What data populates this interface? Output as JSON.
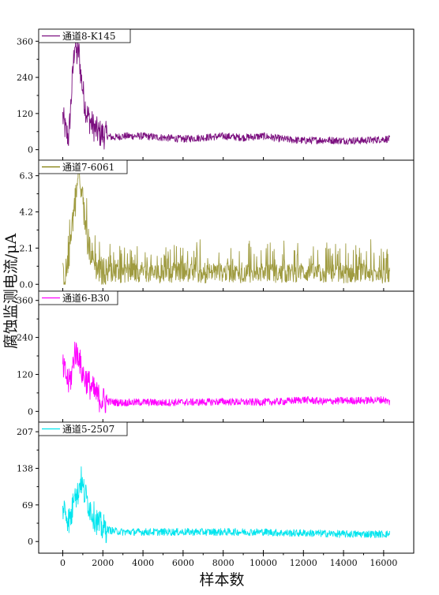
{
  "chart_data": {
    "type": "line",
    "ylabel": "腐蚀监测电流/μA",
    "xlabel": "样本数",
    "xlim": [
      -1200,
      17500
    ],
    "xticks": [
      0,
      2000,
      4000,
      6000,
      8000,
      10000,
      12000,
      14000,
      16000
    ],
    "grid": false,
    "legend_position": "top-left",
    "panels": [
      {
        "name": "通道8-K145",
        "color": "#7b0f7f",
        "ylim": [
          -35,
          400
        ],
        "yticks": [
          "0",
          "120",
          "240",
          "360"
        ],
        "ytick_values": [
          0,
          120,
          240,
          360
        ],
        "x": [
          0,
          150,
          300,
          450,
          600,
          700,
          800,
          900,
          1000,
          1100,
          1200,
          1400,
          1600,
          1800,
          2000,
          2500,
          3000,
          4000,
          5000,
          6000,
          7000,
          8000,
          9000,
          10000,
          11000,
          12000,
          13000,
          14000,
          15000,
          16000,
          16300
        ],
        "values": [
          110,
          60,
          40,
          200,
          360,
          310,
          330,
          250,
          200,
          150,
          120,
          90,
          70,
          55,
          50,
          40,
          45,
          45,
          40,
          35,
          40,
          45,
          40,
          45,
          35,
          30,
          32,
          30,
          30,
          35,
          35
        ]
      },
      {
        "name": "通道7-6061",
        "color": "#7f7a00",
        "ylim": [
          -0.4,
          7.2
        ],
        "yticks": [
          "0.0",
          "2.1",
          "4.2",
          "6.3"
        ],
        "ytick_values": [
          0,
          2.1,
          4.2,
          6.3
        ],
        "x": [
          0,
          150,
          300,
          450,
          600,
          700,
          800,
          900,
          1000,
          1100,
          1200,
          1400,
          1600,
          1800,
          2000,
          2500,
          3000,
          4000,
          5000,
          6000,
          7000,
          8000,
          9000,
          10000,
          11000,
          12000,
          13000,
          14000,
          15000,
          16000,
          16300
        ],
        "values": [
          0.4,
          0.6,
          1.5,
          3.5,
          4.5,
          5.5,
          6.3,
          5.2,
          4.5,
          3.8,
          2.8,
          1.8,
          1.2,
          0.8,
          0.7,
          0.7,
          0.6,
          0.7,
          0.6,
          0.7,
          0.6,
          0.7,
          0.6,
          0.7,
          0.6,
          0.7,
          0.6,
          0.6,
          0.7,
          0.6,
          0.6
        ]
      },
      {
        "name": "通道6-B30",
        "color": "#ff00ff",
        "ylim": [
          -35,
          390
        ],
        "yticks": [
          "0",
          "120",
          "240",
          "360"
        ],
        "ytick_values": [
          0,
          120,
          240,
          360
        ],
        "x": [
          0,
          150,
          300,
          450,
          600,
          700,
          800,
          900,
          1000,
          1100,
          1200,
          1400,
          1600,
          1800,
          2000,
          2500,
          3000,
          4000,
          5000,
          6000,
          7000,
          8000,
          9000,
          10000,
          11000,
          12000,
          13000,
          14000,
          15000,
          16000,
          16300
        ],
        "values": [
          140,
          120,
          90,
          120,
          200,
          180,
          190,
          140,
          120,
          110,
          100,
          80,
          60,
          45,
          35,
          30,
          28,
          30,
          28,
          30,
          30,
          32,
          30,
          30,
          32,
          38,
          32,
          35,
          35,
          38,
          30
        ]
      },
      {
        "name": "通道5-2507",
        "color": "#00e5ee",
        "ylim": [
          -22,
          225
        ],
        "yticks": [
          "0",
          "69",
          "138",
          "207"
        ],
        "ytick_values": [
          0,
          69,
          138,
          207
        ],
        "x": [
          0,
          150,
          300,
          450,
          600,
          700,
          800,
          900,
          1000,
          1100,
          1200,
          1400,
          1600,
          1800,
          2000,
          2500,
          3000,
          4000,
          5000,
          6000,
          7000,
          8000,
          9000,
          10000,
          11000,
          12000,
          13000,
          14000,
          15000,
          16000,
          16300
        ],
        "values": [
          65,
          55,
          40,
          50,
          110,
          80,
          100,
          120,
          100,
          90,
          80,
          60,
          45,
          32,
          25,
          20,
          18,
          18,
          18,
          18,
          18,
          18,
          18,
          18,
          16,
          16,
          15,
          14,
          14,
          14,
          14
        ]
      }
    ]
  }
}
